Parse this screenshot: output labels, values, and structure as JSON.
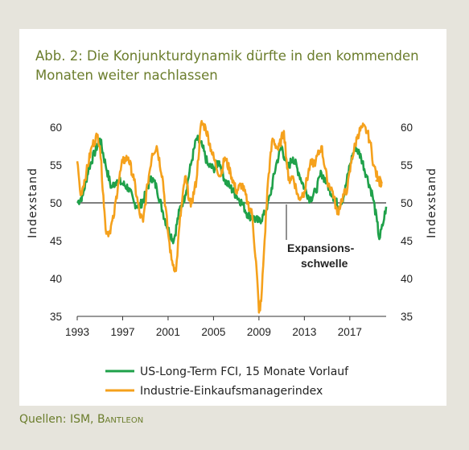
{
  "title_line1": "Abb. 2: Die Konjunkturdynamik dürfte in den kommenden",
  "title_line2": "Monaten weiter nachlassen",
  "source_prefix": "Quellen: ISM, ",
  "source_name": "Bantleon",
  "colors": {
    "green": "#1fa14a",
    "orange": "#f5a11c",
    "title": "#6b7d2c"
  },
  "chart_data": {
    "type": "line",
    "ylabel_left": "Indexstand",
    "ylabel_right": "Indexstand",
    "ylim": [
      35,
      60
    ],
    "xlim": [
      1993,
      2020.2
    ],
    "yticks": [
      60,
      55,
      50,
      45,
      40,
      35
    ],
    "xticks": [
      "1993",
      "1997",
      "2001",
      "2005",
      "2009",
      "2013",
      "2017"
    ],
    "reference_line": 50,
    "annotation": {
      "line1": "Expansions-",
      "line2": "schwelle"
    },
    "legend_position": "bottom",
    "series": [
      {
        "name": "US-Long-Term FCI, 15 Monate Vorlauf",
        "color": "#1fa14a",
        "points": [
          [
            1993.0,
            50.0
          ],
          [
            1993.5,
            51.0
          ],
          [
            1994.0,
            54.5
          ],
          [
            1994.5,
            56.5
          ],
          [
            1995.0,
            58.5
          ],
          [
            1995.5,
            55.0
          ],
          [
            1996.0,
            52.0
          ],
          [
            1996.5,
            53.0
          ],
          [
            1997.0,
            52.5
          ],
          [
            1997.5,
            52.0
          ],
          [
            1998.0,
            50.0
          ],
          [
            1998.5,
            49.5
          ],
          [
            1999.0,
            51.0
          ],
          [
            1999.5,
            53.5
          ],
          [
            2000.0,
            52.0
          ],
          [
            2000.5,
            49.0
          ],
          [
            2001.0,
            46.5
          ],
          [
            2001.5,
            45.0
          ],
          [
            2002.0,
            49.0
          ],
          [
            2002.5,
            51.0
          ],
          [
            2003.0,
            55.0
          ],
          [
            2003.5,
            58.5
          ],
          [
            2004.0,
            57.5
          ],
          [
            2004.5,
            55.0
          ],
          [
            2005.0,
            54.5
          ],
          [
            2005.5,
            55.5
          ],
          [
            2006.0,
            53.0
          ],
          [
            2006.5,
            52.0
          ],
          [
            2007.0,
            51.0
          ],
          [
            2007.5,
            50.0
          ],
          [
            2008.0,
            48.5
          ],
          [
            2008.5,
            48.0
          ],
          [
            2009.0,
            47.5
          ],
          [
            2009.5,
            48.5
          ],
          [
            2010.0,
            51.0
          ],
          [
            2010.5,
            55.0
          ],
          [
            2011.0,
            57.5
          ],
          [
            2011.5,
            54.5
          ],
          [
            2012.0,
            56.0
          ],
          [
            2012.5,
            54.0
          ],
          [
            2013.0,
            52.0
          ],
          [
            2013.5,
            50.5
          ],
          [
            2014.0,
            51.5
          ],
          [
            2014.5,
            54.0
          ],
          [
            2015.0,
            52.5
          ],
          [
            2015.5,
            51.0
          ],
          [
            2016.0,
            49.5
          ],
          [
            2016.5,
            51.0
          ],
          [
            2017.0,
            55.0
          ],
          [
            2017.5,
            57.5
          ],
          [
            2018.0,
            56.0
          ],
          [
            2018.5,
            53.5
          ],
          [
            2019.0,
            51.0
          ],
          [
            2019.4,
            47.5
          ],
          [
            2019.6,
            45.2
          ],
          [
            2019.9,
            47.0
          ],
          [
            2020.2,
            49.5
          ]
        ]
      },
      {
        "name": "Industrie-Einkaufsmanagerindex",
        "color": "#f5a11c",
        "points": [
          [
            1993.0,
            55.5
          ],
          [
            1993.3,
            51.0
          ],
          [
            1993.8,
            54.0
          ],
          [
            1994.3,
            57.5
          ],
          [
            1994.8,
            59.0
          ],
          [
            1995.0,
            57.5
          ],
          [
            1995.3,
            51.0
          ],
          [
            1995.5,
            46.5
          ],
          [
            1995.8,
            46.0
          ],
          [
            1996.2,
            48.0
          ],
          [
            1996.6,
            52.5
          ],
          [
            1997.0,
            55.5
          ],
          [
            1997.5,
            56.0
          ],
          [
            1998.0,
            53.0
          ],
          [
            1998.5,
            48.5
          ],
          [
            1998.8,
            47.5
          ],
          [
            1999.2,
            52.5
          ],
          [
            1999.6,
            56.5
          ],
          [
            2000.0,
            57.5
          ],
          [
            2000.5,
            53.5
          ],
          [
            2001.0,
            46.0
          ],
          [
            2001.3,
            42.5
          ],
          [
            2001.7,
            41.0
          ],
          [
            2002.0,
            47.0
          ],
          [
            2002.5,
            53.5
          ],
          [
            2003.0,
            49.5
          ],
          [
            2003.5,
            53.0
          ],
          [
            2003.9,
            60.5
          ],
          [
            2004.3,
            60.0
          ],
          [
            2004.8,
            57.0
          ],
          [
            2005.2,
            55.0
          ],
          [
            2005.6,
            53.5
          ],
          [
            2006.0,
            56.0
          ],
          [
            2006.5,
            54.0
          ],
          [
            2007.0,
            51.5
          ],
          [
            2007.5,
            52.5
          ],
          [
            2008.0,
            50.0
          ],
          [
            2008.4,
            48.5
          ],
          [
            2008.8,
            41.0
          ],
          [
            2009.0,
            35.5
          ],
          [
            2009.2,
            37.0
          ],
          [
            2009.5,
            45.0
          ],
          [
            2009.8,
            53.0
          ],
          [
            2010.2,
            58.5
          ],
          [
            2010.7,
            57.0
          ],
          [
            2011.2,
            59.5
          ],
          [
            2011.6,
            53.0
          ],
          [
            2012.0,
            53.5
          ],
          [
            2012.5,
            50.5
          ],
          [
            2013.0,
            51.5
          ],
          [
            2013.5,
            55.0
          ],
          [
            2014.0,
            55.5
          ],
          [
            2014.5,
            57.5
          ],
          [
            2015.0,
            53.0
          ],
          [
            2015.5,
            51.5
          ],
          [
            2015.9,
            48.5
          ],
          [
            2016.3,
            50.5
          ],
          [
            2016.8,
            52.0
          ],
          [
            2017.2,
            56.0
          ],
          [
            2017.7,
            59.0
          ],
          [
            2018.1,
            60.0
          ],
          [
            2018.5,
            59.5
          ],
          [
            2018.8,
            58.0
          ],
          [
            2019.1,
            55.0
          ],
          [
            2019.5,
            53.0
          ],
          [
            2019.8,
            52.5
          ]
        ]
      }
    ]
  }
}
